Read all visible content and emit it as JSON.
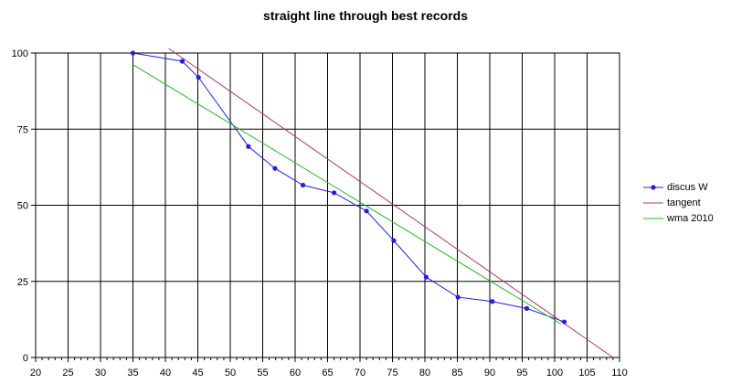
{
  "chart_data": {
    "type": "line",
    "title": "straight line through best records",
    "xlabel": "",
    "ylabel": "",
    "xlim": [
      20,
      110
    ],
    "ylim": [
      0,
      100
    ],
    "xticks": [
      20,
      25,
      30,
      35,
      40,
      45,
      50,
      55,
      60,
      65,
      70,
      75,
      80,
      85,
      90,
      95,
      100,
      105,
      110
    ],
    "yticks": [
      0,
      25,
      50,
      75,
      100
    ],
    "grid": true,
    "legend_position": "right",
    "series": [
      {
        "name": "discus W",
        "color": "#1f1fe6",
        "markers": true,
        "x": [
          35.0,
          42.6,
          45.1,
          52.8,
          56.9,
          61.2,
          66.0,
          71.0,
          75.2,
          80.2,
          85.1,
          90.4,
          95.7,
          101.5
        ],
        "y": [
          100.0,
          97.3,
          92.0,
          69.3,
          62.1,
          56.6,
          54.1,
          48.1,
          38.4,
          26.4,
          19.8,
          18.4,
          16.1,
          11.7
        ]
      },
      {
        "name": "tangent",
        "color": "#b03a6a",
        "markers": false,
        "x": [
          40.5,
          109.0
        ],
        "y": [
          101.5,
          0.0
        ]
      },
      {
        "name": "wma 2010",
        "color": "#22bb22",
        "markers": false,
        "x": [
          35.0,
          101.0
        ],
        "y": [
          96.2,
          11.0
        ]
      }
    ]
  }
}
